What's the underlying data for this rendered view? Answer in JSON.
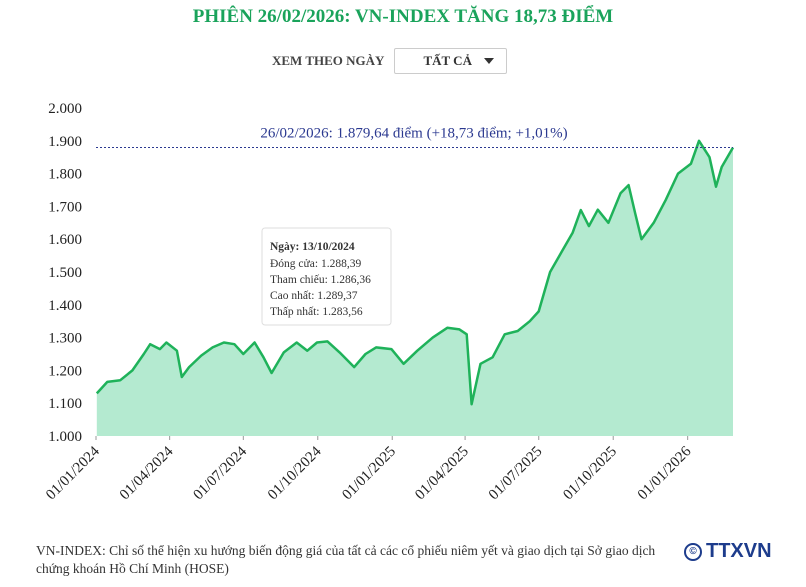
{
  "header": {
    "title": "PHIÊN 26/02/2026: VN-INDEX TĂNG 18,73 ĐIỂM",
    "filter_label": "XEM THEO NGÀY",
    "filter_value": "TẤT CẢ"
  },
  "chart_data": {
    "type": "area",
    "x": [
      "2024-01-02",
      "2024-01-15",
      "2024-01-31",
      "2024-02-15",
      "2024-02-29",
      "2024-03-08",
      "2024-03-20",
      "2024-03-28",
      "2024-04-10",
      "2024-04-16",
      "2024-04-25",
      "2024-05-10",
      "2024-05-24",
      "2024-06-07",
      "2024-06-20",
      "2024-07-01",
      "2024-07-15",
      "2024-07-26",
      "2024-08-05",
      "2024-08-20",
      "2024-09-05",
      "2024-09-18",
      "2024-09-30",
      "2024-10-13",
      "2024-10-28",
      "2024-11-15",
      "2024-11-29",
      "2024-12-12",
      "2024-12-31",
      "2025-01-15",
      "2025-02-01",
      "2025-02-20",
      "2025-03-10",
      "2025-03-25",
      "2025-04-03",
      "2025-04-09",
      "2025-04-20",
      "2025-05-05",
      "2025-05-20",
      "2025-06-05",
      "2025-06-20",
      "2025-07-01",
      "2025-07-15",
      "2025-07-29",
      "2025-08-12",
      "2025-08-22",
      "2025-09-01",
      "2025-09-12",
      "2025-09-25",
      "2025-10-10",
      "2025-10-20",
      "2025-10-28",
      "2025-11-05",
      "2025-11-20",
      "2025-12-05",
      "2025-12-20",
      "2026-01-05",
      "2026-01-15",
      "2026-01-28",
      "2026-02-05",
      "2026-02-12",
      "2026-02-26"
    ],
    "values": [
      1130,
      1165,
      1170,
      1200,
      1250,
      1280,
      1265,
      1285,
      1260,
      1180,
      1210,
      1245,
      1270,
      1285,
      1280,
      1250,
      1285,
      1240,
      1192,
      1255,
      1285,
      1260,
      1285,
      1288.39,
      1255,
      1210,
      1250,
      1270,
      1265,
      1220,
      1260,
      1300,
      1330,
      1325,
      1310,
      1097,
      1220,
      1240,
      1310,
      1320,
      1350,
      1380,
      1500,
      1560,
      1620,
      1689,
      1640,
      1690,
      1650,
      1740,
      1765,
      1680,
      1600,
      1650,
      1720,
      1800,
      1830,
      1900,
      1850,
      1760,
      1820,
      1879.64
    ],
    "color": "#1fb25a",
    "fill_color": "#b4ead0",
    "xlim": [
      "2024-01-01",
      "2026-02-26"
    ],
    "xticks": [
      {
        "value": "2024-01-01",
        "label": "01/01/2024"
      },
      {
        "value": "2024-04-01",
        "label": "01/04/2024"
      },
      {
        "value": "2024-07-01",
        "label": "01/07/2024"
      },
      {
        "value": "2024-10-01",
        "label": "01/10/2024"
      },
      {
        "value": "2025-01-01",
        "label": "01/01/2025"
      },
      {
        "value": "2025-04-01",
        "label": "01/04/2025"
      },
      {
        "value": "2025-07-01",
        "label": "01/07/2025"
      },
      {
        "value": "2025-10-01",
        "label": "01/10/2025"
      },
      {
        "value": "2026-01-01",
        "label": "01/01/2026"
      }
    ],
    "ylim": [
      1000,
      2000
    ],
    "yticks": [
      {
        "value": 1000,
        "label": "1.000"
      },
      {
        "value": 1100,
        "label": "1.100"
      },
      {
        "value": 1200,
        "label": "1.200"
      },
      {
        "value": 1300,
        "label": "1.300"
      },
      {
        "value": 1400,
        "label": "1.400"
      },
      {
        "value": 1500,
        "label": "1.500"
      },
      {
        "value": 1600,
        "label": "1.600"
      },
      {
        "value": 1700,
        "label": "1.700"
      },
      {
        "value": 1800,
        "label": "1.800"
      },
      {
        "value": 1900,
        "label": "1.900"
      },
      {
        "value": 2000,
        "label": "2.000"
      }
    ],
    "grid": false,
    "reference_line": {
      "value": 1879.64,
      "label": "26/02/2026: 1.879,64 điểm (+18,73 điểm; +1,01%)",
      "color": "#2b3990"
    },
    "tooltip": {
      "title": "Ngày: 13/10/2024",
      "lines": [
        "Đóng cửa: 1.288,39",
        "Tham chiếu: 1.286,36",
        "Cao nhất: 1.289,37",
        "Thấp nhất: 1.283,56"
      ]
    }
  },
  "footnote": "VN-INDEX: Chỉ số thể hiện xu hướng biến động giá của tất cả các cổ phiếu niêm yết và giao dịch tại Sở giao dịch chứng khoán Hồ Chí Minh (HOSE)",
  "logo": "TTXVN"
}
